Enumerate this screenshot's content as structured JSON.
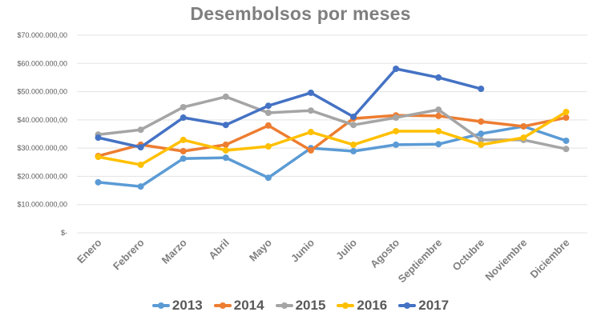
{
  "chart_data": {
    "type": "line",
    "title": "Desembolsos por meses",
    "xlabel": "",
    "ylabel": "",
    "ylim": [
      0,
      70000000
    ],
    "yticks": [
      0,
      10000000,
      20000000,
      30000000,
      40000000,
      50000000,
      60000000,
      70000000
    ],
    "ytick_labels": [
      "$-",
      "$10.000.000,00",
      "$20.000.000,00",
      "$30.000.000,00",
      "$40.000.000,00",
      "$50.000.000,00",
      "$60.000.000,00",
      "$70.000.000,00"
    ],
    "grid": true,
    "legend_position": "bottom",
    "categories": [
      "Enero",
      "Febrero",
      "Marzo",
      "Abril",
      "Mayo",
      "Junio",
      "Julio",
      "Agosto",
      "Septiembre",
      "Octubre",
      "Noviembre",
      "Diciembre"
    ],
    "series": [
      {
        "name": "2013",
        "color": "#5B9BD5",
        "values": [
          17900000,
          16400000,
          26300000,
          26600000,
          19500000,
          30000000,
          28900000,
          31200000,
          31400000,
          35100000,
          37700000,
          32600000
        ]
      },
      {
        "name": "2014",
        "color": "#ED7D31",
        "values": [
          27200000,
          31200000,
          28900000,
          31200000,
          38000000,
          29200000,
          40500000,
          41600000,
          41400000,
          39400000,
          37700000,
          40800000
        ]
      },
      {
        "name": "2015",
        "color": "#A5A5A5",
        "values": [
          34800000,
          36500000,
          44500000,
          48200000,
          42500000,
          43300000,
          38200000,
          40800000,
          43600000,
          32900000,
          32900000,
          29700000
        ]
      },
      {
        "name": "2016",
        "color": "#FFC000",
        "values": [
          26900000,
          24100000,
          32900000,
          29200000,
          30600000,
          35700000,
          31200000,
          36000000,
          36000000,
          31200000,
          33700000,
          42800000
        ]
      },
      {
        "name": "2017",
        "color": "#4472C4",
        "values": [
          33700000,
          30300000,
          40800000,
          38200000,
          45000000,
          49600000,
          41100000,
          58100000,
          55000000,
          51000000,
          null,
          null
        ]
      }
    ]
  }
}
